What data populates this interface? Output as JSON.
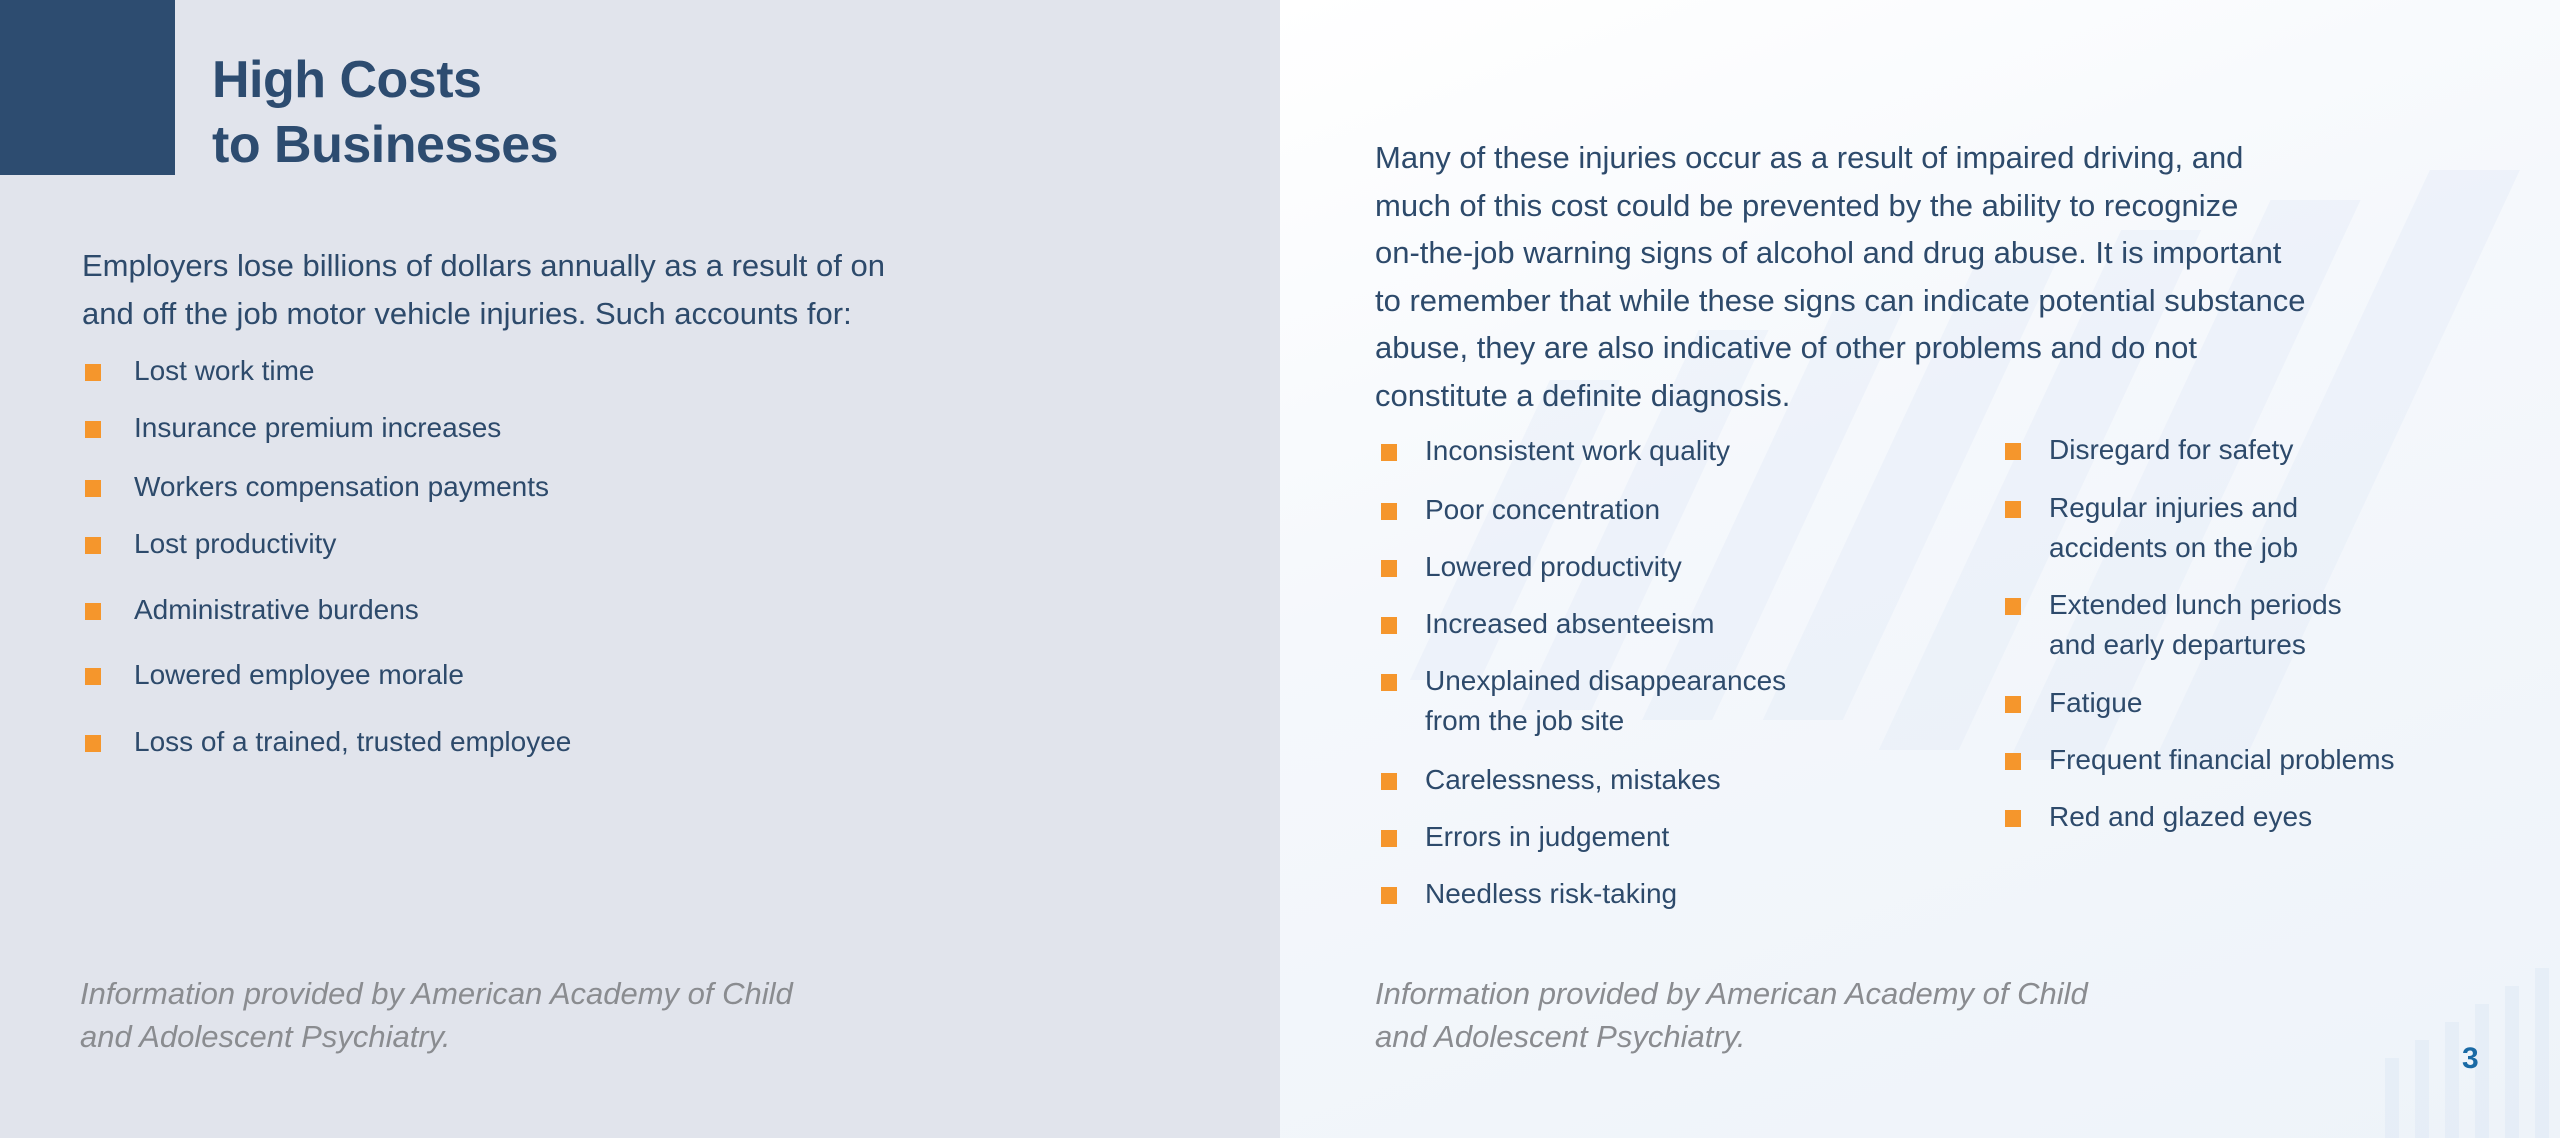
{
  "left": {
    "title_line1": "High Costs",
    "title_line2": "to Businesses",
    "intro_line1": "Employers lose billions of dollars annually as a result of on",
    "intro_line2": "and off the job motor vehicle injuries. Such accounts for:",
    "items": [
      "Lost work time",
      "Insurance premium increases",
      "Workers compensation payments",
      "Lost productivity",
      "Administrative burdens",
      "Lowered employee morale",
      "Loss of a trained, trusted employee"
    ],
    "footnote_line1": "Information provided by American Academy of Child",
    "footnote_line2": "and Adolescent Psychiatry."
  },
  "right": {
    "para_lines": [
      "Many of these injuries occur as a result of impaired driving, and",
      "much of this cost could be prevented by the ability to recognize",
      "on-the-job warning signs of alcohol and drug abuse. It is important",
      "to remember that while these signs can indicate potential substance",
      "abuse, they are also indicative of other problems and do not",
      "constitute a definite diagnosis."
    ],
    "col1": [
      [
        "Inconsistent work quality"
      ],
      [
        "Poor concentration"
      ],
      [
        "Lowered productivity"
      ],
      [
        "Increased absenteeism"
      ],
      [
        "Unexplained disappearances",
        "from the job site"
      ],
      [
        "Carelessness, mistakes"
      ],
      [
        "Errors in judgement"
      ],
      [
        "Needless risk-taking"
      ]
    ],
    "col2": [
      [
        "Disregard for safety"
      ],
      [
        "Regular injuries and",
        "accidents on the job"
      ],
      [
        "Extended lunch periods",
        "and early departures"
      ],
      [
        "Fatigue"
      ],
      [
        "Frequent financial problems"
      ],
      [
        "Red and glazed eyes"
      ]
    ],
    "footnote_line1": "Information provided by American Academy of Child",
    "footnote_line2": "and Adolescent Psychiatry.",
    "page_number": "3"
  },
  "colors": {
    "navy": "#2d4c70",
    "bullet": "#f5962c",
    "page_number": "#1a6aa5"
  }
}
